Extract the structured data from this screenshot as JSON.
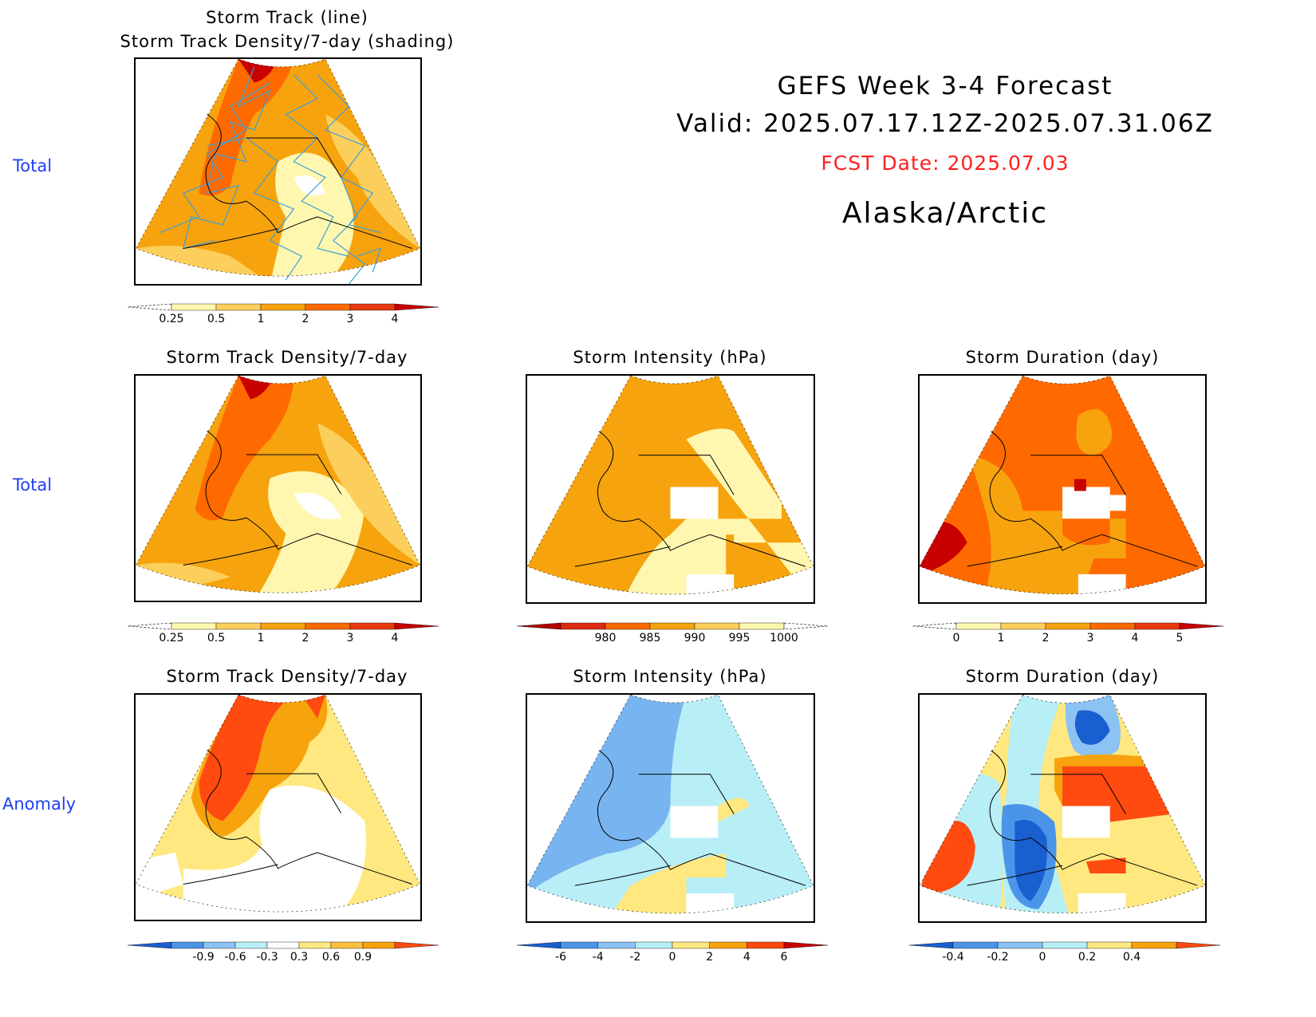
{
  "header": {
    "line1": "GEFS Week 3-4 Forecast",
    "line2": "Valid: 2025.07.17.12Z-2025.07.31.06Z",
    "fcst_date": "FCST Date: 2025.07.03",
    "region": "Alaska/Arctic"
  },
  "row_labels": {
    "top": "Total",
    "middle": "Total",
    "bottom": "Anomaly"
  },
  "panels": {
    "track_title_1": "Storm Track (line)",
    "track_title_2": "Storm Track Density/7-day (shading)",
    "density_total": "Storm Track Density/7-day",
    "intensity_total": "Storm Intensity (hPa)",
    "duration_total": "Storm Duration (day)",
    "density_anom": "Storm Track Density/7-day",
    "intensity_anom": "Storm Intensity (hPa)",
    "duration_anom": "Storm Duration (day)"
  },
  "colorbars": {
    "density": {
      "labels": [
        "0.25",
        "0.5",
        "1",
        "2",
        "3",
        "4"
      ],
      "colors": [
        "#fff7b0",
        "#fccf5c",
        "#f7a30e",
        "#ff6a00",
        "#e83a0e",
        "#c80000"
      ]
    },
    "intensity": {
      "labels": [
        "980",
        "985",
        "990",
        "995",
        "1000"
      ],
      "colors": [
        "#b00000",
        "#dc2a10",
        "#ff6a00",
        "#f7a30e",
        "#fccf5c",
        "#fff7b0"
      ]
    },
    "duration": {
      "labels": [
        "0",
        "1",
        "2",
        "3",
        "4",
        "5"
      ],
      "colors": [
        "#fff7b0",
        "#fccf5c",
        "#f7a30e",
        "#ff6a00",
        "#e83a0e",
        "#c80000"
      ]
    },
    "density_anom": {
      "labels": [
        "-0.9",
        "-0.6",
        "-0.3",
        "0.3",
        "0.6",
        "0.9"
      ],
      "colors": [
        "#1a5fd0",
        "#4a95e8",
        "#8cc2f4",
        "#b8eef6",
        "#ffffff",
        "#ffe880",
        "#fcc040",
        "#f7a30e",
        "#ff4a10"
      ]
    },
    "intensity_anom": {
      "labels": [
        "-6",
        "-4",
        "-2",
        "0",
        "2",
        "4",
        "6"
      ],
      "colors": [
        "#1a5fd0",
        "#4a95e8",
        "#8cc2f4",
        "#b8eef6",
        "#ffe880",
        "#f7a30e",
        "#ff4a10",
        "#c80000"
      ]
    },
    "duration_anom": {
      "labels": [
        "-0.4",
        "-0.2",
        "0",
        "0.2",
        "0.4"
      ],
      "colors": [
        "#1a5fd0",
        "#4a95e8",
        "#8cc2f4",
        "#b8eef6",
        "#ffe880",
        "#f7a30e",
        "#ff4a10"
      ]
    }
  }
}
